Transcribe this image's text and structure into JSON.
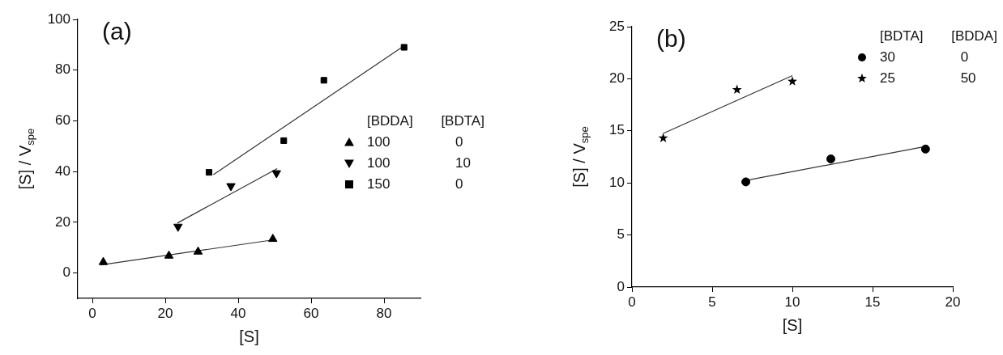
{
  "chart_data": [
    {
      "type": "scatter",
      "title": "(a)",
      "xlabel": "[S]",
      "ylabel": "[S] / V$_{spe}$",
      "legend_title": "[BDDA] [BDTA]",
      "legend": "right",
      "grid": false,
      "xlim": [
        -4,
        90
      ],
      "xticks": [
        0,
        20,
        40,
        60,
        80
      ],
      "ylim": [
        -10,
        100
      ],
      "yticks": [
        0,
        20,
        40,
        60,
        80,
        100
      ],
      "series": [
        {
          "name": "100 0",
          "type": "scatter",
          "marker": "triangle",
          "color": "#000000",
          "x": [
            3,
            21,
            29,
            49.5
          ],
          "values": [
            4.3,
            6.8,
            8.4,
            13.4
          ]
        },
        {
          "name": "100 10",
          "type": "scatter",
          "marker": "triangle-down",
          "color": "#000000",
          "x": [
            23.5,
            38,
            50.5
          ],
          "values": [
            18.3,
            34.3,
            39.4
          ]
        },
        {
          "name": "150 0",
          "type": "scatter",
          "marker": "square",
          "color": "#000000",
          "x": [
            32,
            52.5,
            63.5,
            85.5
          ],
          "values": [
            39.7,
            52.2,
            76,
            89
          ]
        },
        {
          "type": "line",
          "color": "#333333",
          "x": [
            2.3,
            50.2
          ],
          "values": [
            3.2,
            13.2
          ]
        },
        {
          "type": "line",
          "color": "#333333",
          "x": [
            23.3,
            50.7
          ],
          "values": [
            19.7,
            41.2
          ]
        },
        {
          "type": "line",
          "color": "#333333",
          "x": [
            33.2,
            85.3
          ],
          "values": [
            38.8,
            89.4
          ]
        }
      ]
    },
    {
      "type": "scatter",
      "title": "(b)",
      "xlabel": "[S]",
      "ylabel": "[S] / V$_{spe}$",
      "legend_title": "[BDTA] [BDDA]",
      "legend": "top right",
      "grid": false,
      "xlim": [
        0,
        20
      ],
      "xticks": [
        0,
        5,
        10,
        15,
        20
      ],
      "ylim": [
        0,
        25
      ],
      "yticks": [
        0,
        5,
        10,
        15,
        20,
        25
      ],
      "series": [
        {
          "name": "30 0",
          "type": "scatter",
          "marker": "circle",
          "color": "#000000",
          "x": [
            7.1,
            12.4,
            18.3
          ],
          "values": [
            10.1,
            12.3,
            13.25
          ]
        },
        {
          "name": "25 50",
          "type": "scatter",
          "marker": "star",
          "color": "#000000",
          "x": [
            1.95,
            6.55,
            10.0
          ],
          "values": [
            14.3,
            18.95,
            19.75
          ]
        },
        {
          "type": "line",
          "color": "#333333",
          "x": [
            7.3,
            18.3
          ],
          "values": [
            10.3,
            13.5
          ]
        },
        {
          "type": "line",
          "color": "#333333",
          "x": [
            1.95,
            10.0
          ],
          "values": [
            14.75,
            20.3
          ]
        }
      ]
    }
  ]
}
